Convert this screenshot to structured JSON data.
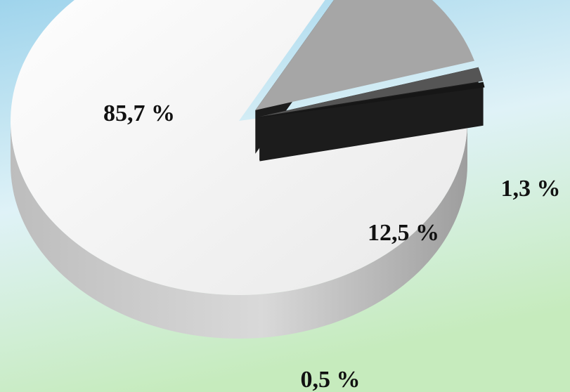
{
  "chart_data": {
    "type": "pie",
    "title": "",
    "three_d": true,
    "exploded_slices": [
      "12,5 %",
      "1,3 %",
      "0,5 %"
    ],
    "slices": [
      {
        "label": "85,7 %",
        "value": 85.7,
        "color": "#f4f4f4"
      },
      {
        "label": "12,5 %",
        "value": 12.5,
        "color": "#a6a6a6"
      },
      {
        "label": "1,3 %",
        "value": 1.3,
        "color": "#555555"
      },
      {
        "label": "0,5 %",
        "value": 0.5,
        "color": "#161616"
      }
    ],
    "background": {
      "top": "#9fd4ec",
      "middle": "#dff2f7",
      "bottom": "#c6ebbd"
    }
  }
}
